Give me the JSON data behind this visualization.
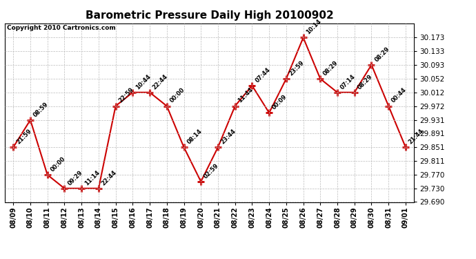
{
  "title": "Barometric Pressure Daily High 20100902",
  "copyright": "Copyright 2010 Cartronics.com",
  "x_labels": [
    "08/09",
    "08/10",
    "08/11",
    "08/12",
    "08/13",
    "08/14",
    "08/15",
    "08/16",
    "08/17",
    "08/18",
    "08/19",
    "08/20",
    "08/21",
    "08/22",
    "08/23",
    "08/24",
    "08/25",
    "08/26",
    "08/27",
    "08/28",
    "08/29",
    "08/30",
    "08/31",
    "09/01"
  ],
  "y_values": [
    29.851,
    29.931,
    29.77,
    29.73,
    29.73,
    29.73,
    29.972,
    30.012,
    30.012,
    29.972,
    29.851,
    29.75,
    29.851,
    29.972,
    30.032,
    29.952,
    30.052,
    30.173,
    30.052,
    30.012,
    30.012,
    30.093,
    29.972,
    29.851
  ],
  "point_labels": [
    "21:59",
    "08:59",
    "00:00",
    "09:29",
    "11:14",
    "22:44",
    "22:59",
    "10:44",
    "22:44",
    "00:00",
    "08:14",
    "02:59",
    "23:44",
    "11:44",
    "07:44",
    "00:09",
    "23:59",
    "10:14",
    "08:29",
    "07:14",
    "08:29",
    "08:29",
    "00:44",
    "21:44"
  ],
  "ylim_min": 29.69,
  "ylim_max": 30.215,
  "y_ticks": [
    29.69,
    29.73,
    29.77,
    29.811,
    29.851,
    29.891,
    29.931,
    29.972,
    30.012,
    30.052,
    30.093,
    30.133,
    30.173
  ],
  "line_color": "#cc0000",
  "marker_color": "#cc0000",
  "bg_color": "#ffffff",
  "plot_bg_color": "#ffffff",
  "grid_color": "#bbbbbb",
  "title_fontsize": 11,
  "copyright_fontsize": 6.5,
  "label_fontsize": 6.0
}
